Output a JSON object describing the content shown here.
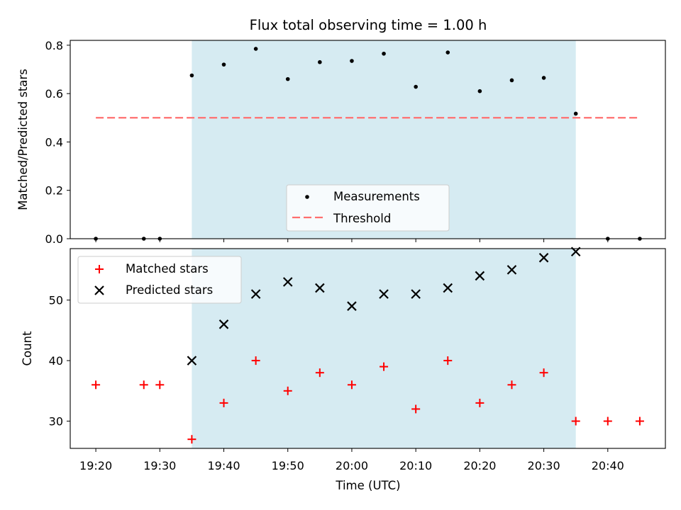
{
  "title": "Flux total observing time = 1.00 h",
  "colors": {
    "shade": "#add8e6",
    "measurement": "#000000",
    "threshold": "#ff6f6f",
    "matched": "#ff0000",
    "predicted": "#000000"
  },
  "chart_data": [
    {
      "type": "scatter",
      "panel": "top",
      "ylabel": "Matched/Predicted stars",
      "ylim": [
        0,
        0.82
      ],
      "yticks": [
        "0.0",
        "0.2",
        "0.4",
        "0.6",
        "0.8"
      ],
      "ytick_values": [
        0,
        0.2,
        0.4,
        0.6,
        0.8
      ],
      "observing_window": [
        "19:35",
        "20:35"
      ],
      "threshold": 0.5,
      "threshold_range": [
        "19:20",
        "20:45"
      ],
      "legend": {
        "placement": "lower-center",
        "measurements": "Measurements",
        "threshold": "Threshold"
      },
      "x": [
        "19:20",
        "19:27:30",
        "19:30",
        "19:35",
        "19:40",
        "19:45",
        "19:50",
        "19:55",
        "20:00",
        "20:05",
        "20:10",
        "20:15",
        "20:20",
        "20:25",
        "20:30",
        "20:35",
        "20:40",
        "20:45"
      ],
      "values": [
        0,
        0,
        0,
        0.675,
        0.72,
        0.785,
        0.66,
        0.73,
        0.735,
        0.765,
        0.628,
        0.77,
        0.61,
        0.655,
        0.665,
        0.517,
        0,
        0
      ]
    },
    {
      "type": "scatter",
      "panel": "bottom",
      "xlabel": "Time (UTC)",
      "ylabel": "Count",
      "xlim": [
        "19:16",
        "20:49"
      ],
      "ylim": [
        25.5,
        58.5
      ],
      "xticks": [
        "19:20",
        "19:30",
        "19:40",
        "19:50",
        "20:00",
        "20:10",
        "20:20",
        "20:30",
        "20:40"
      ],
      "yticks": [
        "30",
        "40",
        "50"
      ],
      "ytick_values": [
        30,
        40,
        50
      ],
      "observing_window": [
        "19:35",
        "20:35"
      ],
      "legend": {
        "placement": "upper-left",
        "matched": "Matched stars",
        "predicted": "Predicted stars"
      },
      "series": [
        {
          "name": "Matched stars",
          "marker": "+",
          "x": [
            "19:20",
            "19:27:30",
            "19:30",
            "19:35",
            "19:40",
            "19:45",
            "19:50",
            "19:55",
            "20:00",
            "20:05",
            "20:10",
            "20:15",
            "20:20",
            "20:25",
            "20:30",
            "20:35",
            "20:40",
            "20:45"
          ],
          "values": [
            36,
            36,
            36,
            27,
            33,
            40,
            35,
            38,
            36,
            39,
            32,
            40,
            33,
            36,
            38,
            30,
            30,
            30
          ]
        },
        {
          "name": "Predicted stars",
          "marker": "x",
          "x": [
            "19:35",
            "19:40",
            "19:45",
            "19:50",
            "19:55",
            "20:00",
            "20:05",
            "20:10",
            "20:15",
            "20:20",
            "20:25",
            "20:30",
            "20:35"
          ],
          "values": [
            40,
            46,
            51,
            53,
            52,
            49,
            51,
            51,
            52,
            54,
            55,
            57,
            58
          ]
        }
      ]
    }
  ]
}
